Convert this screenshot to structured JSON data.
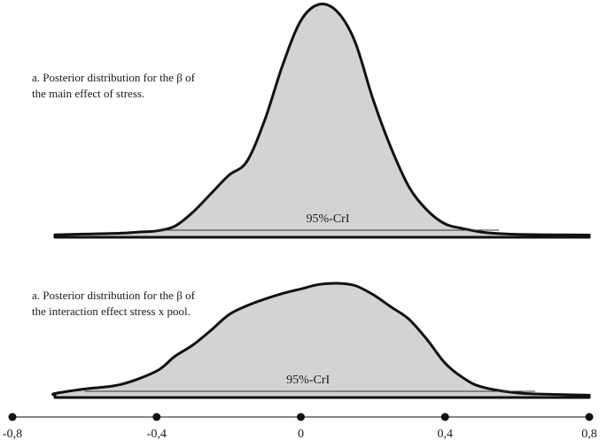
{
  "colors": {
    "fill": "#d3d3d3",
    "stroke": "#111111",
    "background": "#ffffff"
  },
  "chart_data": [
    {
      "type": "area",
      "title": "a. Posterior distribution for the β of the main effect of stress.",
      "title_lines": [
        "a. Posterior distribution for the β of",
        "the main effect of stress."
      ],
      "interval_label": "95%-CrI",
      "interval": [
        -0.4,
        0.55
      ],
      "x": [
        -0.8,
        -0.6,
        -0.5,
        -0.45,
        -0.4,
        -0.35,
        -0.3,
        -0.25,
        -0.2,
        -0.15,
        -0.1,
        -0.05,
        0,
        0.05,
        0.1,
        0.15,
        0.2,
        0.25,
        0.3,
        0.35,
        0.4,
        0.45,
        0.5,
        0.55,
        0.6,
        0.7,
        0.8
      ],
      "y": [
        0.003,
        0.006,
        0.01,
        0.015,
        0.02,
        0.04,
        0.1,
        0.18,
        0.26,
        0.32,
        0.5,
        0.74,
        0.93,
        1.0,
        0.97,
        0.84,
        0.59,
        0.38,
        0.21,
        0.11,
        0.05,
        0.03,
        0.015,
        0.008,
        0.005,
        0.003,
        0.002
      ]
    },
    {
      "type": "area",
      "title": "a. Posterior distribution for the β of the interaction effect stress x pool.",
      "title_lines": [
        "a. Posterior distribution for the β of",
        "the interaction effect stress x pool."
      ],
      "interval_label": "95%-CrI",
      "interval": [
        -0.6,
        0.65
      ],
      "x": [
        -0.8,
        -0.7,
        -0.6,
        -0.5,
        -0.4,
        -0.35,
        -0.3,
        -0.25,
        -0.2,
        -0.15,
        -0.1,
        -0.05,
        0,
        0.05,
        0.1,
        0.15,
        0.2,
        0.25,
        0.3,
        0.35,
        0.4,
        0.45,
        0.5,
        0.6,
        0.7,
        0.8
      ],
      "y": [
        0.005,
        0.02,
        0.06,
        0.1,
        0.22,
        0.35,
        0.45,
        0.58,
        0.72,
        0.8,
        0.86,
        0.91,
        0.95,
        0.99,
        1.0,
        0.98,
        0.9,
        0.79,
        0.68,
        0.5,
        0.29,
        0.16,
        0.08,
        0.025,
        0.012,
        0.005
      ]
    }
  ],
  "x_axis": {
    "ticks": [
      -0.8,
      -0.4,
      0,
      0.4,
      0.8
    ],
    "tick_labels": [
      "-0,8",
      "-0,4",
      "0",
      "0,4",
      "0,8"
    ],
    "xlim": [
      -0.8,
      0.8
    ]
  }
}
